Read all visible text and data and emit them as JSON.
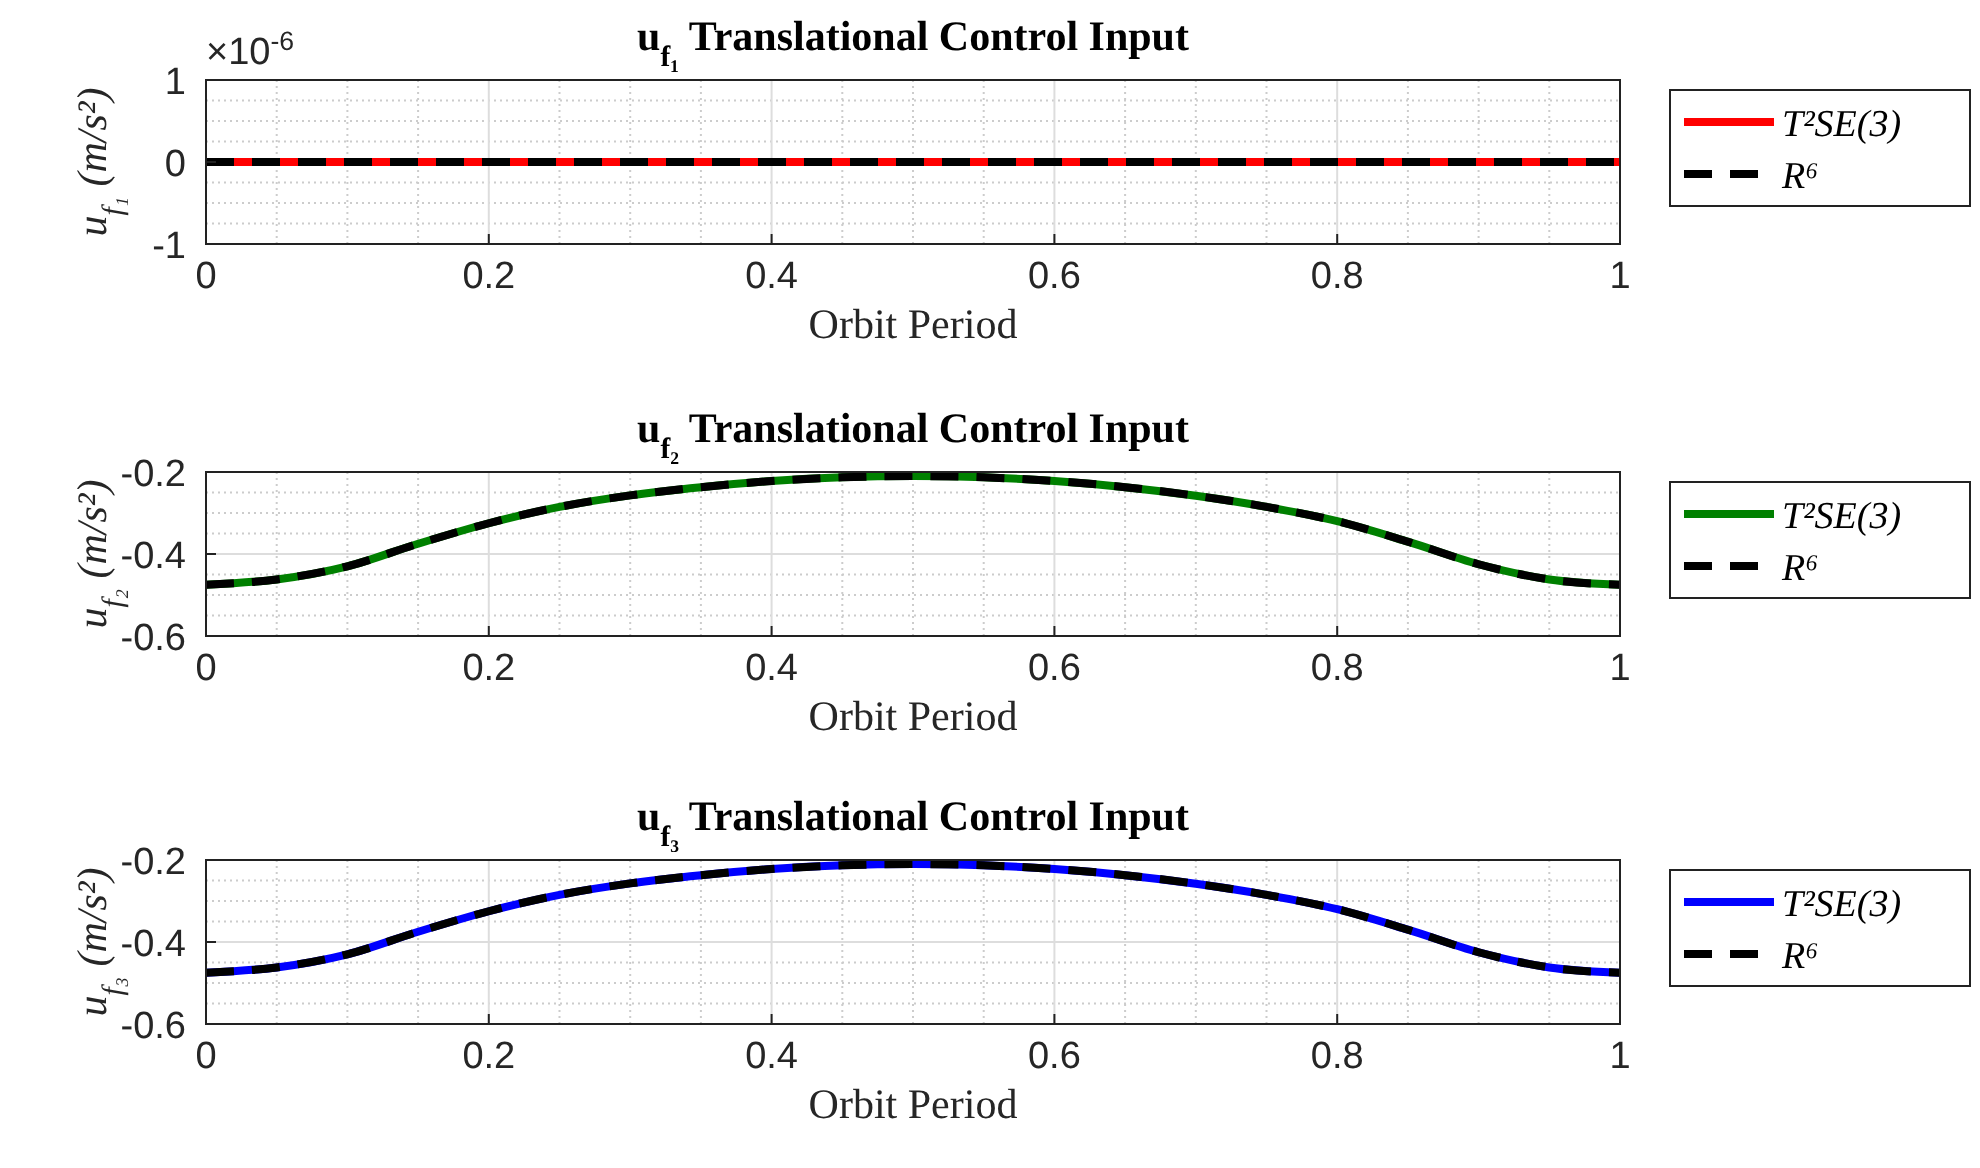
{
  "chart_data": [
    {
      "type": "line",
      "title": "u$_{f₁}$ Translational Control Input",
      "xlabel": "Orbit Period",
      "ylabel": "u$_{f₁}$ (m/s²)",
      "annotations": [
        "×10$^{-6}$"
      ],
      "xlim": [
        0,
        1
      ],
      "xticks": [
        0,
        0.2,
        0.4,
        0.6,
        0.8,
        1
      ],
      "ylim": [
        -1,
        1
      ],
      "yticks": [
        -1,
        0,
        1
      ],
      "grid": true,
      "legend": "right",
      "x": [
        0,
        0.25,
        0.5,
        0.75,
        1
      ],
      "series": [
        {
          "name": "T²SE(3)",
          "color": "#ff0000",
          "line_style": "solid",
          "values": [
            0,
            0,
            0,
            0,
            0
          ]
        },
        {
          "name": "R⁶",
          "color": "#000000",
          "line_style": "dashed",
          "values": [
            0,
            0,
            0,
            0,
            0
          ]
        }
      ]
    },
    {
      "type": "line",
      "title": "u$_{f₂}$ Translational Control Input",
      "xlabel": "Orbit Period",
      "ylabel": "u$_{f₂}$ (m/s²)",
      "xlim": [
        0,
        1
      ],
      "xticks": [
        0,
        0.2,
        0.4,
        0.6,
        0.8,
        1
      ],
      "ylim": [
        -0.6,
        -0.2
      ],
      "yticks": [
        -0.6,
        -0.4,
        -0.2
      ],
      "grid": true,
      "legend": "right",
      "x": [
        0,
        0.05,
        0.1,
        0.15,
        0.2,
        0.25,
        0.3,
        0.35,
        0.4,
        0.45,
        0.5,
        0.55,
        0.6,
        0.65,
        0.7,
        0.75,
        0.8,
        0.85,
        0.9,
        0.95,
        1
      ],
      "series": [
        {
          "name": "T²SE(3)",
          "color": "#008000",
          "line_style": "solid",
          "values": [
            -0.475,
            -0.462,
            -0.43,
            -0.375,
            -0.325,
            -0.285,
            -0.257,
            -0.237,
            -0.222,
            -0.213,
            -0.21,
            -0.213,
            -0.222,
            -0.237,
            -0.258,
            -0.285,
            -0.32,
            -0.37,
            -0.425,
            -0.462,
            -0.475
          ]
        },
        {
          "name": "R⁶",
          "color": "#000000",
          "line_style": "dashed",
          "values": [
            -0.475,
            -0.462,
            -0.43,
            -0.375,
            -0.325,
            -0.285,
            -0.257,
            -0.237,
            -0.222,
            -0.213,
            -0.21,
            -0.213,
            -0.222,
            -0.237,
            -0.258,
            -0.285,
            -0.32,
            -0.37,
            -0.425,
            -0.462,
            -0.475
          ]
        }
      ]
    },
    {
      "type": "line",
      "title": "u$_{f₃}$ Translational Control Input",
      "xlabel": "Orbit Period",
      "ylabel": "u$_{f₃}$ (m/s²)",
      "xlim": [
        0,
        1
      ],
      "xticks": [
        0,
        0.2,
        0.4,
        0.6,
        0.8,
        1
      ],
      "ylim": [
        -0.6,
        -0.2
      ],
      "yticks": [
        -0.6,
        -0.4,
        -0.2
      ],
      "grid": true,
      "legend": "right",
      "x": [
        0,
        0.05,
        0.1,
        0.15,
        0.2,
        0.25,
        0.3,
        0.35,
        0.4,
        0.45,
        0.5,
        0.55,
        0.6,
        0.65,
        0.7,
        0.75,
        0.8,
        0.85,
        0.9,
        0.95,
        1
      ],
      "series": [
        {
          "name": "T²SE(3)",
          "color": "#0000ff",
          "line_style": "solid",
          "values": [
            -0.475,
            -0.462,
            -0.43,
            -0.375,
            -0.325,
            -0.285,
            -0.257,
            -0.237,
            -0.222,
            -0.213,
            -0.21,
            -0.213,
            -0.222,
            -0.237,
            -0.258,
            -0.285,
            -0.32,
            -0.37,
            -0.425,
            -0.462,
            -0.475
          ]
        },
        {
          "name": "R⁶",
          "color": "#000000",
          "line_style": "dashed",
          "values": [
            -0.475,
            -0.462,
            -0.43,
            -0.375,
            -0.325,
            -0.285,
            -0.257,
            -0.237,
            -0.222,
            -0.213,
            -0.21,
            -0.213,
            -0.222,
            -0.237,
            -0.258,
            -0.285,
            -0.32,
            -0.37,
            -0.425,
            -0.462,
            -0.475
          ]
        }
      ]
    }
  ]
}
